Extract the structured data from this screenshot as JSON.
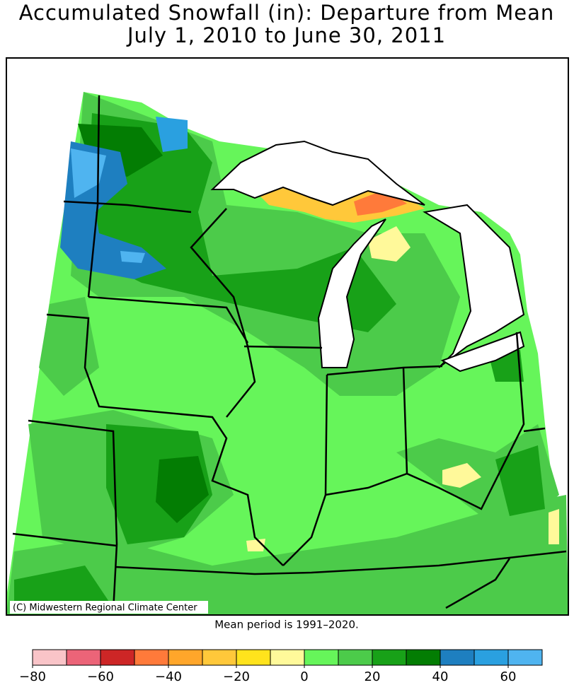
{
  "header": {
    "title_line1": "Accumulated Snowfall (in): Departure from Mean",
    "title_line2": "July 1, 2010 to June 30, 2011"
  },
  "map": {
    "credit": "(C) Midwestern Regional Climate Center"
  },
  "note": "Mean period is 1991–2020.",
  "colorbar": {
    "lim": [
      -80,
      70
    ],
    "bounds": [
      -80,
      -70,
      -60,
      -50,
      -40,
      -30,
      -20,
      -10,
      0,
      10,
      20,
      30,
      40,
      50,
      60,
      70
    ],
    "colors": [
      "#f9c4c8",
      "#ec6478",
      "#cd2626",
      "#ff7a3a",
      "#ffa62a",
      "#ffc83a",
      "#ffe31c",
      "#fff99a",
      "#66f55a",
      "#4ccb4a",
      "#18a118",
      "#037d03",
      "#1e7fc0",
      "#2aa0e0",
      "#4fb4f0"
    ],
    "ticks": [
      {
        "value": -80,
        "label": "−80"
      },
      {
        "value": -60,
        "label": "−60"
      },
      {
        "value": -40,
        "label": "−40"
      },
      {
        "value": -20,
        "label": "−20"
      },
      0,
      20,
      40,
      60
    ]
  }
}
